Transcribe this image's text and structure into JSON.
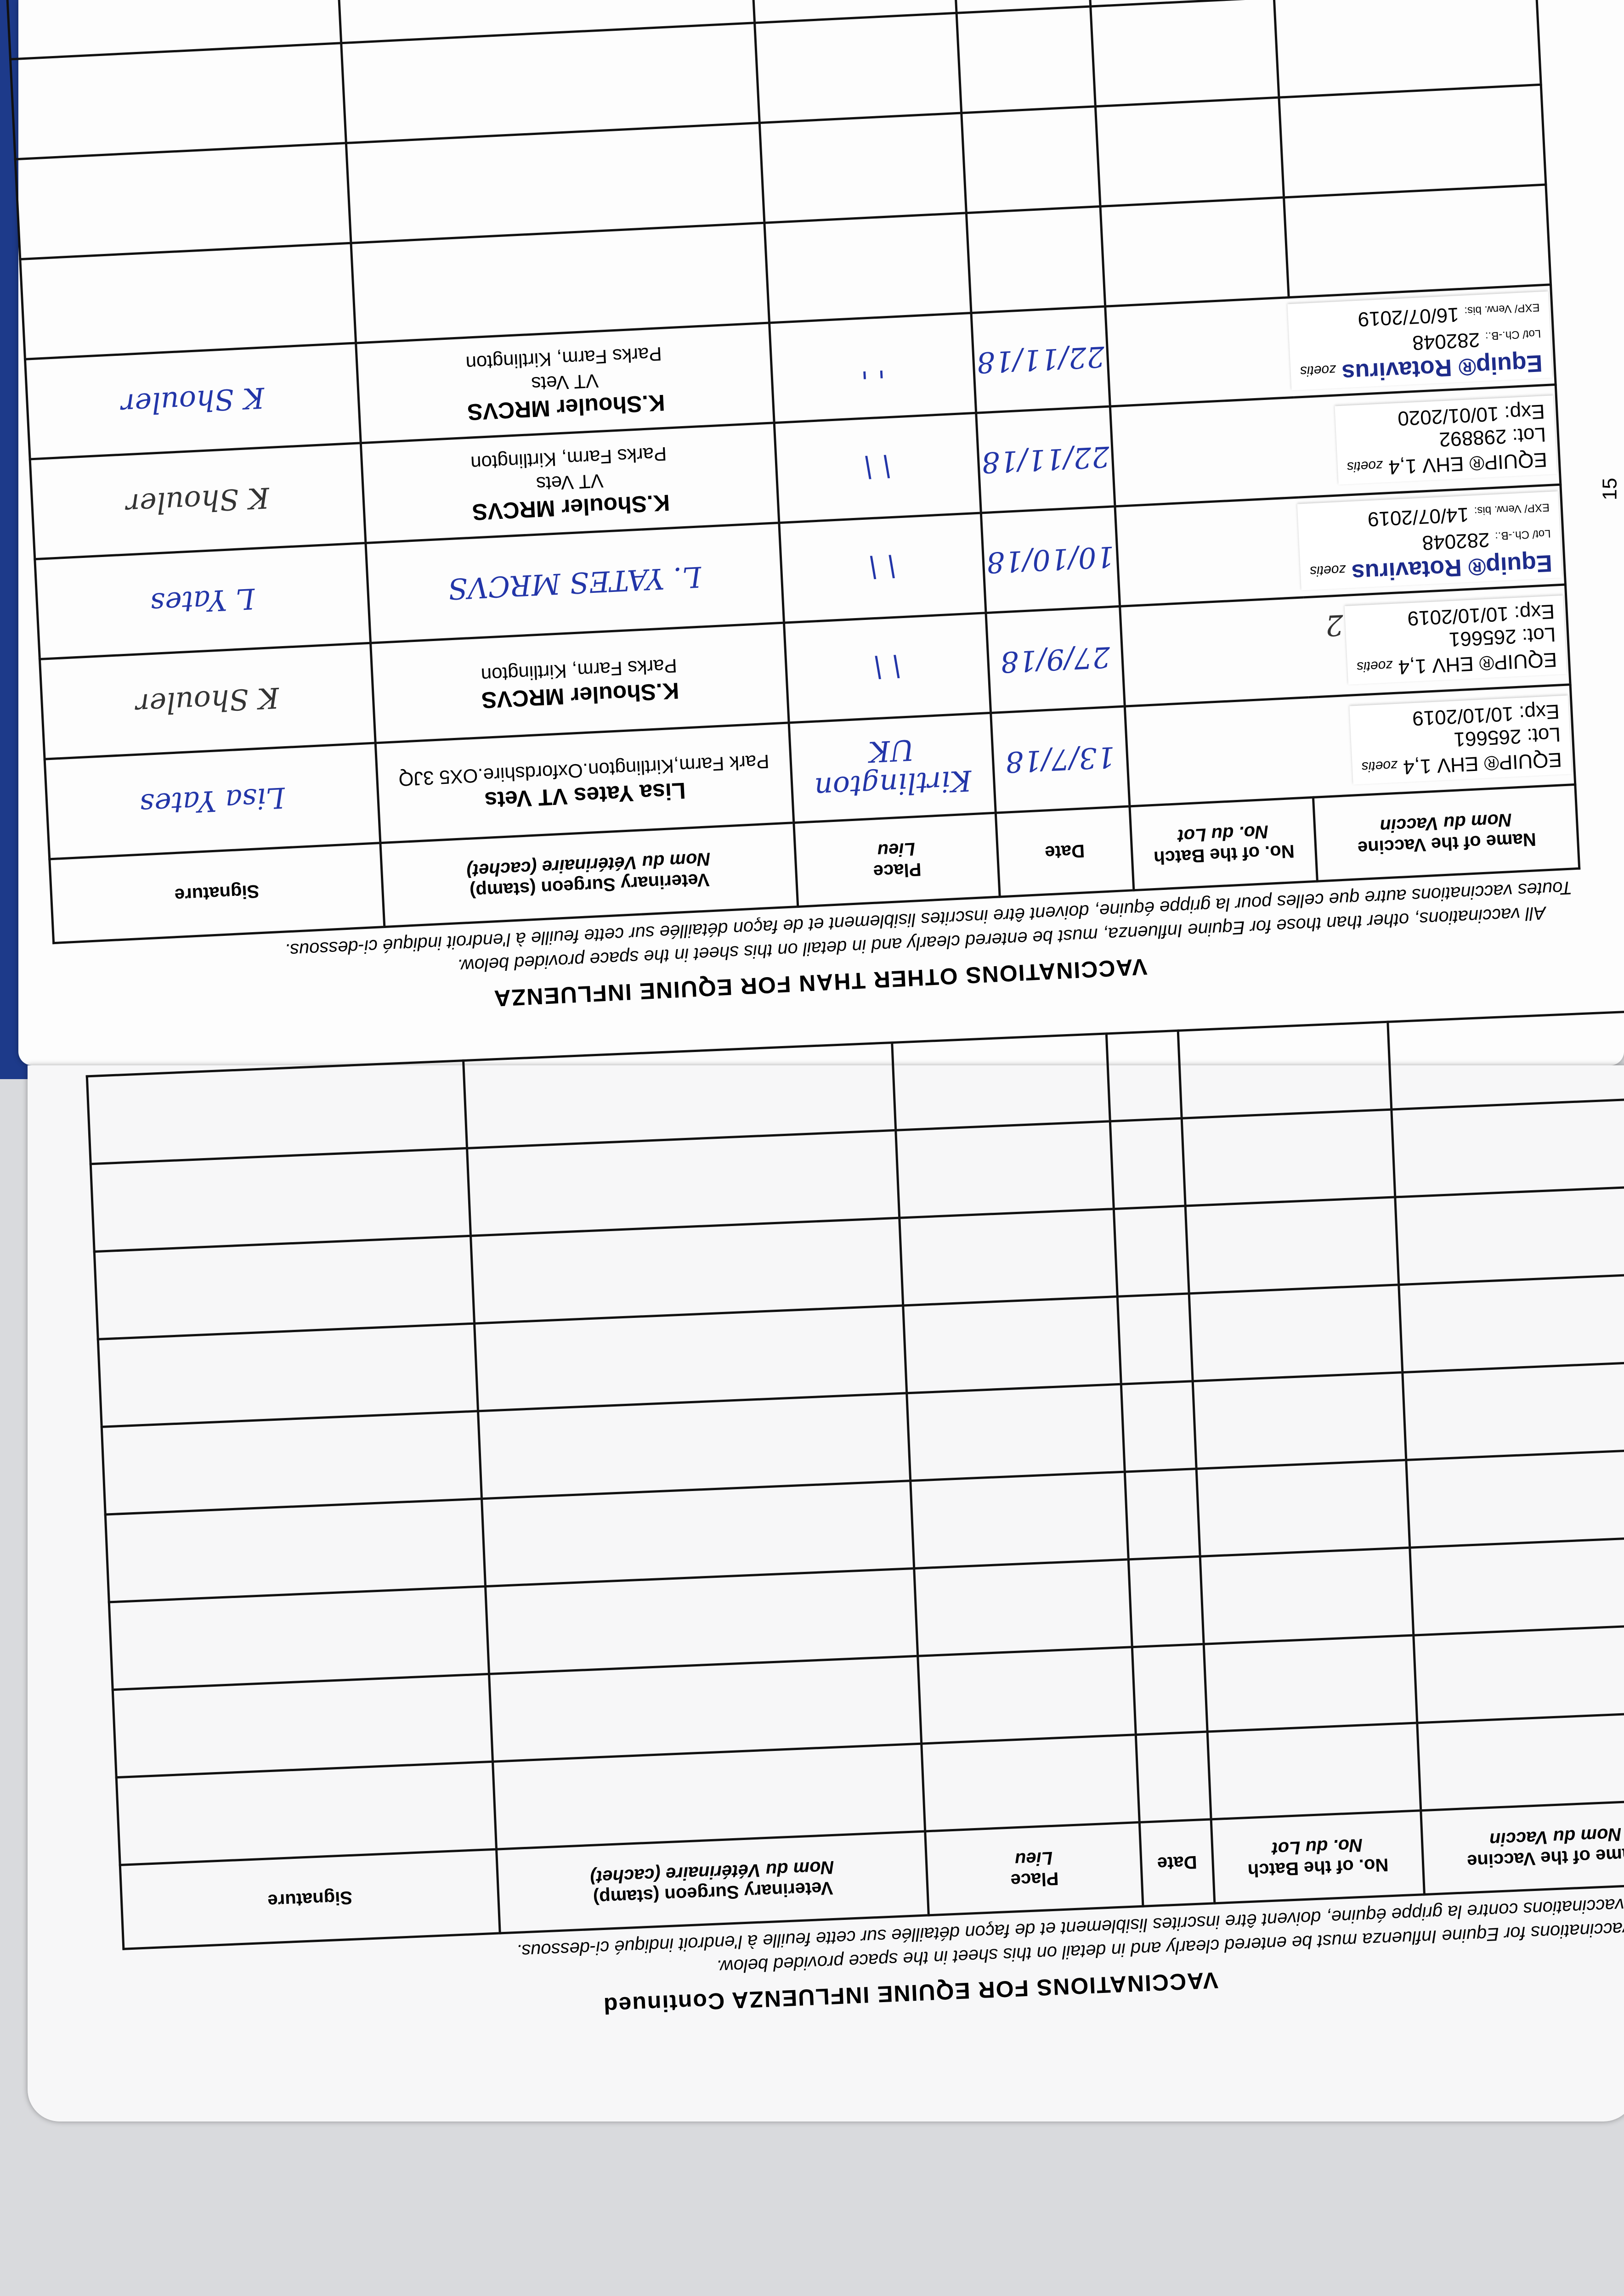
{
  "page_number": "15",
  "upper_page": {
    "title": "VACCINATIONS OTHER THAN FOR EQUINE INFLUENZA",
    "instructions_en": "All vaccinations, other than those for Equine Influenza, must be entered clearly and in detail on this sheet in the space provided below.",
    "instructions_fr": "Toutes vaccinations autre que celles pour la grippe équine, doivent être inscrites lisiblement et de façon détaillée sur cette feuille à l'endroit indiqué ci-dessous.",
    "headers": {
      "name_en": "Name of the Vaccine",
      "name_fr": "Nom du Vaccin",
      "batch_en": "No. of the Batch",
      "batch_fr": "No. du Lot",
      "date": "Date",
      "place_en": "Place",
      "place_fr": "Lieu",
      "vet_en": "Veterinary Surgeon (stamp)",
      "vet_fr": "Nom du Vétérinaire (cachet)",
      "signature": "Signature"
    },
    "rows": [
      {
        "vaccine": "EQUIP® EHV 1,4",
        "brand_suffix": "zoetis",
        "lot_label": "Lot:",
        "lot": "265661",
        "exp_label": "Exp:",
        "exp": "10/10/2019",
        "note": "",
        "date": "13/7/18",
        "place": "Kirtlington UK",
        "vet_name": "Lisa Yates VT Vets",
        "vet_address": "Park Farm,Kirtlington.Oxfordshire.OX5 3JQ",
        "vet_handwritten": "",
        "signature": "Lisa Yates"
      },
      {
        "vaccine": "EQUIP® EHV 1,4",
        "brand_suffix": "zoetis",
        "lot_label": "Lot:",
        "lot": "265661",
        "exp_label": "Exp:",
        "exp": "10/10/2019",
        "note": "2",
        "date": "27/9/18",
        "place": "\\ \\",
        "vet_name": "K.Shouler MRCVS",
        "vet_address": "Parks Farm, Kirtlington",
        "vet_handwritten": "",
        "signature": "K Shouler"
      },
      {
        "vaccine": "Equip® Rotavirus",
        "brand_suffix": "zoetis",
        "lot_label": "Lot/ Ch.-B.:",
        "lot": "282048",
        "exp_label": "EXP/ Verw. bis:",
        "exp": "14/07/2019",
        "note": "",
        "date": "10/10/18",
        "place": "\\ \\",
        "vet_name": "",
        "vet_address": "",
        "vet_handwritten": "L. YATES MRCVS",
        "signature": "L Yates"
      },
      {
        "vaccine": "EQUIP® EHV 1,4",
        "brand_suffix": "zoetis",
        "lot_label": "Lot:",
        "lot": "298892",
        "exp_label": "Exp:",
        "exp": "10/01/2020",
        "note": "",
        "date": "22/11/18",
        "place": "\\ \\",
        "vet_name": "K.Shouler MRCVS",
        "vet_sub": "VT Vets",
        "vet_address": "Parks Farm, Kirtlington",
        "vet_handwritten": "",
        "signature": "K Shouler"
      },
      {
        "vaccine": "Equip® Rotavirus",
        "brand_suffix": "zoetis",
        "lot_label": "Lot/ Ch.-B.:",
        "lot": "282048",
        "exp_label": "EXP/ Verw. bis:",
        "exp": "16/07/2019",
        "note": "",
        "date": "22/11/18",
        "place": "' '",
        "vet_name": "K.Shouler MRCVS",
        "vet_sub": "VT Vets",
        "vet_address": "Parks Farm, Kirtlington",
        "vet_handwritten": "",
        "signature": "K Shouler"
      }
    ],
    "empty_rows": 4
  },
  "lower_page": {
    "title": "VACCINATIONS FOR EQUINE INFLUENZA Continued",
    "instructions_en": "All vaccinations for Equine Influenza must be entered clearly and in detail on this sheet in the space provided below.",
    "instructions_fr": "Toutes vaccinations contre la grippe équine, doivent être inscrites lisiblement et de façon détaillée sur cette feuille à l'endroit indiqué ci-dessous.",
    "headers": {
      "name_en": "Name of the Vaccine",
      "name_fr": "Nom du Vaccin",
      "batch_en": "No. of the Batch",
      "batch_fr": "No. du Lot",
      "date": "Date",
      "place_en": "Place",
      "place_fr": "Lieu",
      "vet_en": "Veterinary Surgeon (stamp)",
      "vet_fr": "Nom du Vétérinaire (cachet)",
      "signature": "Signature"
    },
    "empty_rows": 9
  },
  "colors": {
    "ink_blue": "#2235a8",
    "brand_navy": "#1d2b8a",
    "rotavirus_light": "#8a93d8",
    "cover_blue": "#1d3a8a"
  }
}
